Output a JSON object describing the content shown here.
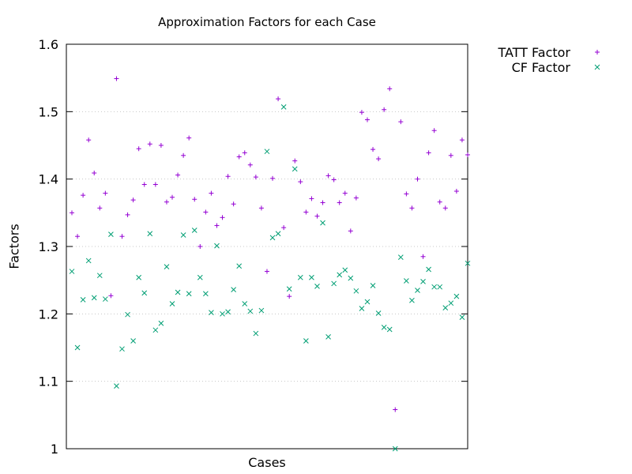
{
  "chart_data": {
    "type": "scatter",
    "title": "Approximation Factors for each Case",
    "xlabel": "Cases",
    "ylabel": "Factors",
    "ylim": [
      1.0,
      1.6
    ],
    "yticks": [
      "1",
      "1.1",
      "1.2",
      "1.3",
      "1.4",
      "1.5",
      "1.6"
    ],
    "grid": "horizontal dotted",
    "legend_position": "outside-right",
    "series": [
      {
        "name": "TATT Factor",
        "marker": "+",
        "color": "#9400d3",
        "values": [
          1.35,
          1.315,
          1.376,
          1.458,
          1.409,
          1.357,
          1.379,
          1.227,
          1.549,
          1.315,
          1.347,
          1.369,
          1.445,
          1.392,
          1.452,
          1.392,
          1.45,
          1.366,
          1.373,
          1.406,
          1.435,
          1.461,
          1.37,
          1.3,
          1.351,
          1.379,
          1.331,
          1.343,
          1.404,
          1.363,
          1.433,
          1.439,
          1.421,
          1.403,
          1.357,
          1.263,
          1.401,
          1.519,
          1.328,
          1.226,
          1.427,
          1.396,
          1.351,
          1.371,
          1.345,
          1.365,
          1.405,
          1.399,
          1.365,
          1.379,
          1.323,
          1.372,
          1.499,
          1.488,
          1.444,
          1.43,
          1.503,
          1.534,
          1.058,
          1.485,
          1.378,
          1.357,
          1.4,
          1.285,
          1.439,
          1.472,
          1.366,
          1.357,
          1.435,
          1.382,
          1.458,
          1.436
        ]
      },
      {
        "name": "CF Factor",
        "marker": "x",
        "color": "#009e73",
        "values": [
          1.263,
          1.15,
          1.221,
          1.279,
          1.224,
          1.257,
          1.222,
          1.318,
          1.093,
          1.148,
          1.199,
          1.16,
          1.254,
          1.231,
          1.319,
          1.176,
          1.186,
          1.27,
          1.215,
          1.232,
          1.317,
          1.23,
          1.324,
          1.254,
          1.23,
          1.202,
          1.301,
          1.2,
          1.203,
          1.236,
          1.271,
          1.215,
          1.204,
          1.171,
          1.205,
          1.441,
          1.313,
          1.319,
          1.507,
          1.237,
          1.415,
          1.254,
          1.16,
          1.254,
          1.241,
          1.335,
          1.166,
          1.245,
          1.258,
          1.265,
          1.253,
          1.234,
          1.208,
          1.218,
          1.242,
          1.201,
          1.18,
          1.177,
          1.0,
          1.284,
          1.249,
          1.22,
          1.235,
          1.248,
          1.266,
          1.24,
          1.24,
          1.209,
          1.216,
          1.226,
          1.195,
          1.275
        ]
      }
    ]
  }
}
